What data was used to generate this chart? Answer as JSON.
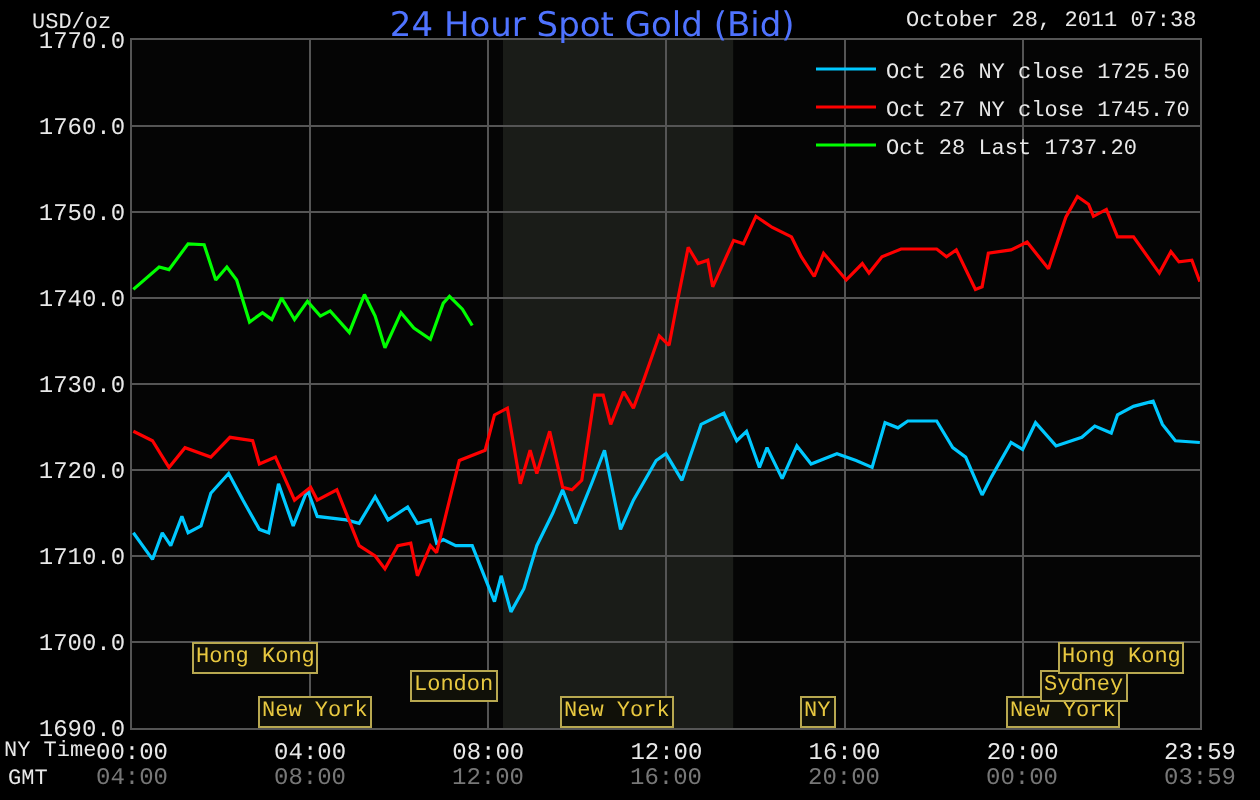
{
  "chart_data": {
    "type": "line",
    "title": "24 Hour Spot Gold (Bid)",
    "subtitle": "October 28, 2011 07:38",
    "ylabel": "USD/oz",
    "xlabel": "NY Time",
    "x2label": "GMT",
    "xlim": [
      0,
      23.983
    ],
    "ylim": [
      1690,
      1770
    ],
    "xticks": [
      {
        "value": 0,
        "label": "00:00"
      },
      {
        "value": 4,
        "label": "04:00"
      },
      {
        "value": 8,
        "label": "08:00"
      },
      {
        "value": 12,
        "label": "12:00"
      },
      {
        "value": 16,
        "label": "16:00"
      },
      {
        "value": 20,
        "label": "20:00"
      },
      {
        "value": 23.983,
        "label": "23:59"
      }
    ],
    "x2lim": [
      "2011-10-28T04:00",
      "2011-10-29T03:59"
    ],
    "x2ticks": [
      {
        "value": "2011-10-28T04:00",
        "label": "04:00"
      },
      {
        "value": "2011-10-28T08:00",
        "label": "08:00"
      },
      {
        "value": "2011-10-28T12:00",
        "label": "12:00"
      },
      {
        "value": "2011-10-28T16:00",
        "label": "16:00"
      },
      {
        "value": "2011-10-28T20:00",
        "label": "20:00"
      },
      {
        "value": "2011-10-29T00:00",
        "label": "00:00"
      },
      {
        "value": "2011-10-29T03:59",
        "label": "03:59"
      }
    ],
    "yticks": [
      {
        "value": 1690,
        "label": "1690.0"
      },
      {
        "value": 1700,
        "label": "1700.0"
      },
      {
        "value": 1710,
        "label": "1710.0"
      },
      {
        "value": 1720,
        "label": "1720.0"
      },
      {
        "value": 1730,
        "label": "1730.0"
      },
      {
        "value": 1740,
        "label": "1740.0"
      },
      {
        "value": 1750,
        "label": "1750.0"
      },
      {
        "value": 1760,
        "label": "1760.0"
      },
      {
        "value": 1770,
        "label": "1770.0"
      }
    ],
    "grid": true,
    "legend": "top right",
    "marker": "none",
    "line_style": "solid",
    "bands": [
      {
        "axis": "x",
        "from": 8.33,
        "to": 13.5,
        "color": "#1a1c18"
      }
    ],
    "annotations": [
      "Hong Kong",
      "London",
      "New York",
      "New York",
      "NY",
      "New York",
      "Sydney",
      "Hong Kong"
    ],
    "series": [
      {
        "name": "Oct 26 NY close 1725.50",
        "color": "#00c8ff",
        "x": [
          0.03,
          0.46,
          0.68,
          0.87,
          1.12,
          1.26,
          1.55,
          1.77,
          2.17,
          2.49,
          2.86,
          3.07,
          3.29,
          3.62,
          3.94,
          4.16,
          4.81,
          5.1,
          5.46,
          5.75,
          6.19,
          6.41,
          6.7,
          6.84,
          6.99,
          7.27,
          7.64,
          8.14,
          8.29,
          8.51,
          8.8,
          9.09,
          9.45,
          9.67,
          9.96,
          10.32,
          10.61,
          10.97,
          11.26,
          11.77,
          11.99,
          12.35,
          12.78,
          13.29,
          13.58,
          13.8,
          14.09,
          14.26,
          14.6,
          14.93,
          15.25,
          15.83,
          16.26,
          16.62,
          16.91,
          17.2,
          17.42,
          18.07,
          18.43,
          18.72,
          19.09,
          19.3,
          19.74,
          20.0,
          20.29,
          20.75,
          21.33,
          21.62,
          21.99,
          22.13,
          22.49,
          22.93,
          23.14,
          23.43,
          23.98
        ],
        "values": [
          1712.7,
          1709.6,
          1712.7,
          1711.2,
          1714.6,
          1712.7,
          1713.5,
          1717.3,
          1719.6,
          1716.5,
          1713.1,
          1712.7,
          1718.4,
          1713.5,
          1717.7,
          1714.6,
          1714.2,
          1713.8,
          1716.9,
          1714.2,
          1715.7,
          1713.8,
          1714.2,
          1711.5,
          1711.9,
          1711.2,
          1711.2,
          1704.7,
          1707.7,
          1703.5,
          1706.2,
          1711.2,
          1715.0,
          1717.7,
          1713.8,
          1718.4,
          1722.3,
          1713.1,
          1716.5,
          1721.1,
          1721.9,
          1718.8,
          1725.3,
          1726.6,
          1723.4,
          1724.5,
          1720.3,
          1722.6,
          1719.0,
          1722.8,
          1720.7,
          1721.9,
          1721.1,
          1720.3,
          1725.5,
          1724.9,
          1725.7,
          1725.7,
          1722.6,
          1721.5,
          1717.1,
          1719.2,
          1723.2,
          1722.4,
          1725.5,
          1722.8,
          1723.8,
          1725.1,
          1724.3,
          1726.4,
          1727.4,
          1728.0,
          1725.3,
          1723.4,
          1723.2
        ]
      },
      {
        "name": "Oct 27 NY close 1745.70",
        "color": "#ff0000",
        "x": [
          0.03,
          0.46,
          0.83,
          1.19,
          1.77,
          2.2,
          2.71,
          2.86,
          3.22,
          3.65,
          4.01,
          4.16,
          4.6,
          5.1,
          5.46,
          5.68,
          5.97,
          6.26,
          6.41,
          6.7,
          6.84,
          7.13,
          7.35,
          7.93,
          8.14,
          8.43,
          8.72,
          8.94,
          9.09,
          9.38,
          9.67,
          9.88,
          10.1,
          10.39,
          10.58,
          10.75,
          11.04,
          11.26,
          11.48,
          11.84,
          12.06,
          12.27,
          12.49,
          12.71,
          12.93,
          13.04,
          13.51,
          13.73,
          14.01,
          14.38,
          14.81,
          15.03,
          15.32,
          15.53,
          16.04,
          16.4,
          16.55,
          16.84,
          17.27,
          18.07,
          18.29,
          18.51,
          18.94,
          19.09,
          19.23,
          19.74,
          20.1,
          20.58,
          20.97,
          21.23,
          21.48,
          21.59,
          21.88,
          22.13,
          22.49,
          23.07,
          23.33,
          23.51,
          23.8,
          23.98
        ],
        "values": [
          1724.5,
          1723.4,
          1720.3,
          1722.6,
          1721.5,
          1723.8,
          1723.4,
          1720.7,
          1721.5,
          1716.5,
          1718.0,
          1716.5,
          1717.7,
          1711.2,
          1710.0,
          1708.5,
          1711.2,
          1711.5,
          1707.7,
          1711.2,
          1710.4,
          1716.5,
          1721.1,
          1722.3,
          1726.4,
          1727.2,
          1718.4,
          1722.3,
          1719.6,
          1724.5,
          1718.0,
          1717.7,
          1718.8,
          1728.7,
          1728.7,
          1725.3,
          1729.1,
          1727.2,
          1730.3,
          1735.6,
          1734.5,
          1740.2,
          1745.9,
          1744.0,
          1744.4,
          1741.3,
          1746.7,
          1746.3,
          1749.5,
          1748.2,
          1747.1,
          1744.8,
          1742.5,
          1745.2,
          1742.1,
          1744.0,
          1742.9,
          1744.8,
          1745.7,
          1745.7,
          1744.8,
          1745.6,
          1741.0,
          1741.3,
          1745.2,
          1745.6,
          1746.5,
          1743.4,
          1749.4,
          1751.8,
          1750.9,
          1749.5,
          1750.3,
          1747.1,
          1747.1,
          1742.9,
          1745.4,
          1744.2,
          1744.4,
          1741.9
        ]
      },
      {
        "name": "Oct 28 Last 1737.20",
        "color": "#00ff00",
        "x": [
          0.03,
          0.61,
          0.83,
          1.26,
          1.62,
          1.88,
          2.13,
          2.35,
          2.64,
          2.93,
          3.14,
          3.36,
          3.65,
          3.94,
          4.23,
          4.45,
          4.88,
          5.22,
          5.46,
          5.68,
          6.04,
          6.33,
          6.7,
          6.99,
          7.13,
          7.42,
          7.64
        ],
        "values": [
          1741.0,
          1743.6,
          1743.3,
          1746.3,
          1746.2,
          1742.1,
          1743.6,
          1742.1,
          1737.2,
          1738.3,
          1737.5,
          1740.0,
          1737.5,
          1739.6,
          1737.9,
          1738.5,
          1736.0,
          1740.4,
          1737.9,
          1734.2,
          1738.3,
          1736.5,
          1735.2,
          1739.4,
          1740.2,
          1738.7,
          1736.8
        ]
      }
    ]
  }
}
